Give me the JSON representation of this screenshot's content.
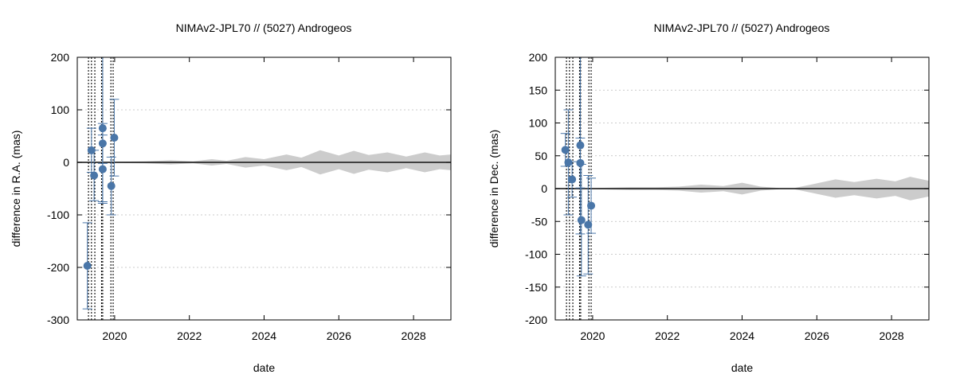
{
  "chart_data": [
    {
      "type": "scatter",
      "title": "NIMAv2-JPL70 // (5027) Androgeos",
      "xlabel": "date",
      "ylabel": "difference in R.A. (mas)",
      "xlim": [
        2019.0,
        2029.0
      ],
      "ylim": [
        -300,
        200
      ],
      "xticks": [
        2020,
        2022,
        2024,
        2026,
        2028
      ],
      "yticks": [
        -300,
        -200,
        -100,
        0,
        100,
        200
      ],
      "grid": "horizontal-dashed",
      "colors": {
        "points": "#4a76a8",
        "band": "#cccccc",
        "line": "#111111",
        "grid": "#bbbbbb"
      },
      "observation_dates": [
        2019.3,
        2019.38,
        2019.47,
        2019.65,
        2019.68,
        2019.9,
        2019.96
      ],
      "points": [
        {
          "x": 2019.27,
          "y": -197,
          "err": 82
        },
        {
          "x": 2019.38,
          "y": 23,
          "err": 42
        },
        {
          "x": 2019.45,
          "y": -25,
          "err": 48
        },
        {
          "x": 2019.68,
          "y": 65,
          "err": 140
        },
        {
          "x": 2019.68,
          "y": 36,
          "err": 38
        },
        {
          "x": 2019.68,
          "y": -13,
          "err": 65
        },
        {
          "x": 2019.91,
          "y": -45,
          "err": 55
        },
        {
          "x": 2019.99,
          "y": 47,
          "err": 73
        }
      ],
      "band": [
        {
          "x": 2019.0,
          "w": 1
        },
        {
          "x": 2020.0,
          "w": 1
        },
        {
          "x": 2020.8,
          "w": 2
        },
        {
          "x": 2021.5,
          "w": 4
        },
        {
          "x": 2022.1,
          "w": 2
        },
        {
          "x": 2022.6,
          "w": 6
        },
        {
          "x": 2023.0,
          "w": 3
        },
        {
          "x": 2023.5,
          "w": 10
        },
        {
          "x": 2024.0,
          "w": 6
        },
        {
          "x": 2024.6,
          "w": 15
        },
        {
          "x": 2025.0,
          "w": 9
        },
        {
          "x": 2025.5,
          "w": 23
        },
        {
          "x": 2026.0,
          "w": 13
        },
        {
          "x": 2026.4,
          "w": 22
        },
        {
          "x": 2026.8,
          "w": 14
        },
        {
          "x": 2027.3,
          "w": 19
        },
        {
          "x": 2027.8,
          "w": 11
        },
        {
          "x": 2028.3,
          "w": 19
        },
        {
          "x": 2028.7,
          "w": 13
        },
        {
          "x": 2029.0,
          "w": 15
        }
      ]
    },
    {
      "type": "scatter",
      "title": "NIMAv2-JPL70 // (5027) Androgeos",
      "xlabel": "date",
      "ylabel": "difference in Dec. (mas)",
      "xlim": [
        2019.0,
        2029.0
      ],
      "ylim": [
        -200,
        200
      ],
      "xticks": [
        2020,
        2022,
        2024,
        2026,
        2028
      ],
      "yticks": [
        -200,
        -150,
        -100,
        -50,
        0,
        50,
        100,
        150,
        200
      ],
      "grid": "horizontal-dashed",
      "colors": {
        "points": "#4a76a8",
        "band": "#cccccc",
        "line": "#111111",
        "grid": "#bbbbbb"
      },
      "observation_dates": [
        2019.3,
        2019.38,
        2019.47,
        2019.65,
        2019.68,
        2019.9,
        2019.96
      ],
      "points": [
        {
          "x": 2019.27,
          "y": 59,
          "err": 25
        },
        {
          "x": 2019.35,
          "y": 40,
          "err": 80
        },
        {
          "x": 2019.45,
          "y": 14,
          "err": 27
        },
        {
          "x": 2019.67,
          "y": 66,
          "err": 135
        },
        {
          "x": 2019.67,
          "y": 39,
          "err": 38
        },
        {
          "x": 2019.7,
          "y": -48,
          "err": 85
        },
        {
          "x": 2019.88,
          "y": -55,
          "err": 75
        },
        {
          "x": 2019.96,
          "y": -26,
          "err": 42
        }
      ],
      "band": [
        {
          "x": 2019.0,
          "w": 1
        },
        {
          "x": 2020.0,
          "w": 1
        },
        {
          "x": 2021.0,
          "w": 2
        },
        {
          "x": 2021.7,
          "w": 2
        },
        {
          "x": 2022.3,
          "w": 3
        },
        {
          "x": 2022.9,
          "w": 6
        },
        {
          "x": 2023.5,
          "w": 4
        },
        {
          "x": 2024.0,
          "w": 9
        },
        {
          "x": 2024.5,
          "w": 3
        },
        {
          "x": 2025.0,
          "w": 1
        },
        {
          "x": 2025.4,
          "w": 1
        },
        {
          "x": 2026.0,
          "w": 8
        },
        {
          "x": 2026.5,
          "w": 14
        },
        {
          "x": 2027.0,
          "w": 10
        },
        {
          "x": 2027.6,
          "w": 15
        },
        {
          "x": 2028.1,
          "w": 11
        },
        {
          "x": 2028.5,
          "w": 18
        },
        {
          "x": 2029.0,
          "w": 12
        }
      ]
    }
  ]
}
